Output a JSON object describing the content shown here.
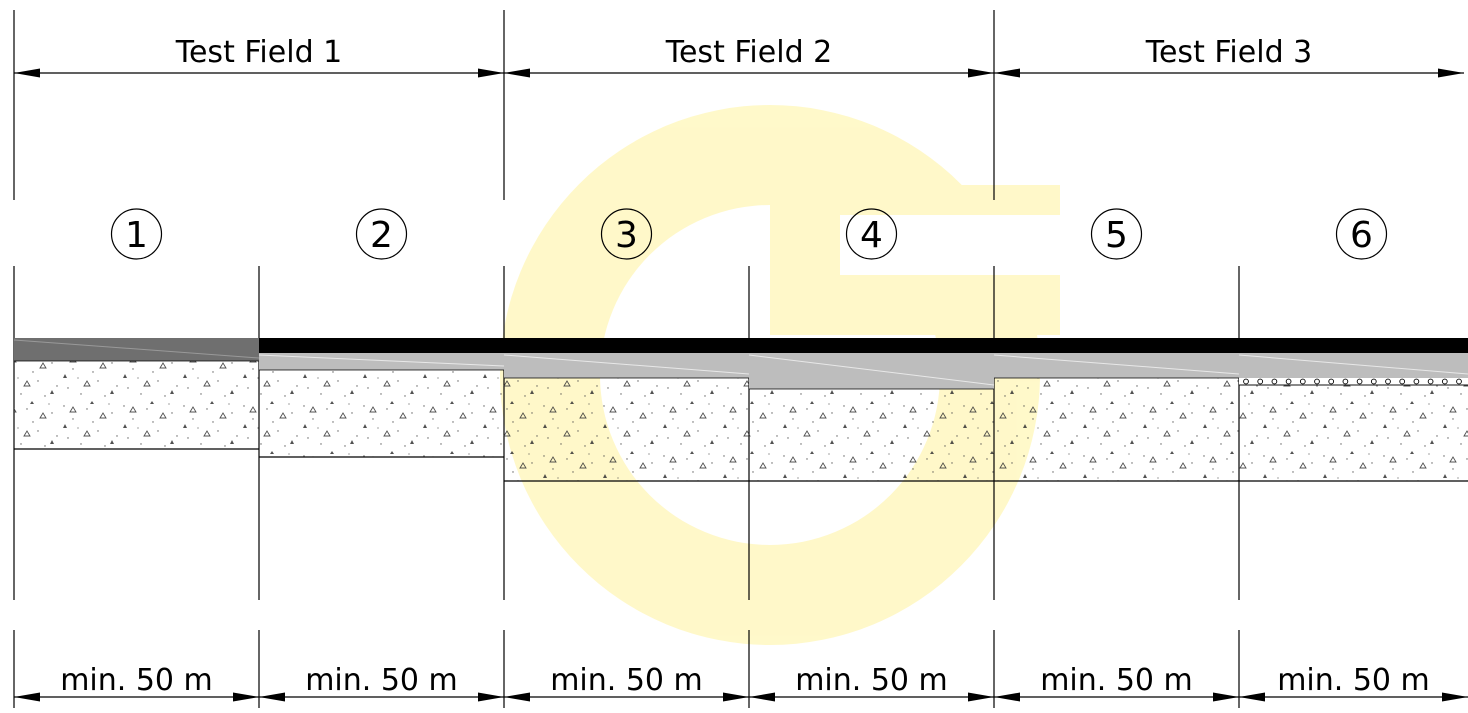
{
  "fields": [
    {
      "label": "Test Field 1"
    },
    {
      "label": "Test Field 2"
    },
    {
      "label": "Test Field 3"
    }
  ],
  "sections": [
    {
      "number": "1",
      "length": "min. 50 m",
      "surface": "single-grey-wearing-course",
      "base": "gravel",
      "interlayer": "none"
    },
    {
      "number": "2",
      "length": "min. 50 m",
      "surface": "black-wearing-course",
      "base": "gravel",
      "interlayer": "grey-binder-course"
    },
    {
      "number": "3",
      "length": "min. 50 m",
      "surface": "black-wearing-course",
      "base": "gravel",
      "interlayer": "grey-binder-course"
    },
    {
      "number": "4",
      "length": "min. 50 m",
      "surface": "black-wearing-course",
      "base": "gravel",
      "interlayer": "thick-grey-binder-course"
    },
    {
      "number": "5",
      "length": "min. 50 m",
      "surface": "black-wearing-course",
      "base": "gravel",
      "interlayer": "grey-binder-course"
    },
    {
      "number": "6",
      "length": "min. 50 m",
      "surface": "black-wearing-course",
      "base": "gravel",
      "interlayer": "grey-binder-course-with-circle-layer"
    }
  ],
  "colors": {
    "wearing_black": "#000000",
    "wearing_grey": "#6f6f6f",
    "binder_grey": "#bdbdbd",
    "watermark": "#fff6b3"
  },
  "icons": {
    "watermark": "watermark-logo-icon",
    "dimension_arrow": "arrow-head-icon"
  }
}
